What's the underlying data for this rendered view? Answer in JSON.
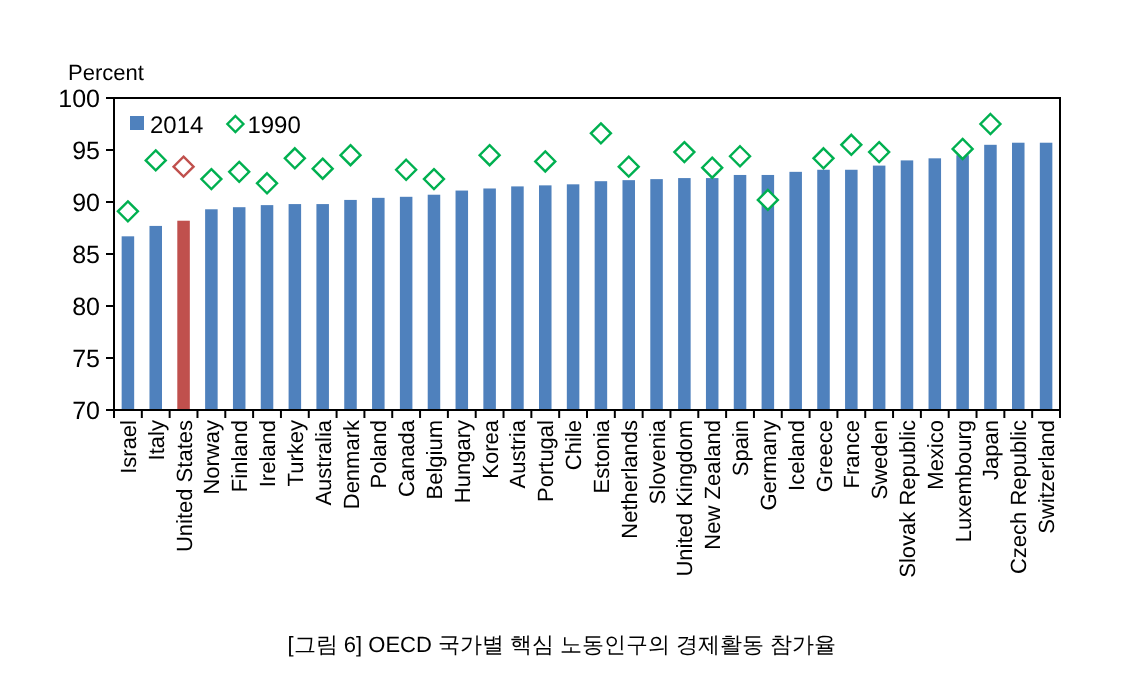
{
  "chart_data": {
    "type": "bar",
    "ylabel": "Percent",
    "categories": [
      "Israel",
      "Italy",
      "United States",
      "Norway",
      "Finland",
      "Ireland",
      "Turkey",
      "Australia",
      "Denmark",
      "Poland",
      "Canada",
      "Belgium",
      "Hungary",
      "Korea",
      "Austria",
      "Portugal",
      "Chile",
      "Estonia",
      "Netherlands",
      "Slovenia",
      "United Kingdom",
      "New Zealand",
      "Spain",
      "Germany",
      "Iceland",
      "Greece",
      "France",
      "Sweden",
      "Slovak Republic",
      "Mexico",
      "Luxembourg",
      "Japan",
      "Czech Republic",
      "Switzerland"
    ],
    "series": [
      {
        "name": "2014",
        "type": "bar",
        "color": "#4f81bd",
        "colors": [
          "#4f81bd",
          "#4f81bd",
          "#c0504d",
          "#4f81bd",
          "#4f81bd",
          "#4f81bd",
          "#4f81bd",
          "#4f81bd",
          "#4f81bd",
          "#4f81bd",
          "#4f81bd",
          "#4f81bd",
          "#4f81bd",
          "#4f81bd",
          "#4f81bd",
          "#4f81bd",
          "#4f81bd",
          "#4f81bd",
          "#4f81bd",
          "#4f81bd",
          "#4f81bd",
          "#4f81bd",
          "#4f81bd",
          "#4f81bd",
          "#4f81bd",
          "#4f81bd",
          "#4f81bd",
          "#4f81bd",
          "#4f81bd",
          "#4f81bd",
          "#4f81bd",
          "#4f81bd",
          "#4f81bd",
          "#4f81bd"
        ],
        "values": [
          86.7,
          87.7,
          88.2,
          89.3,
          89.5,
          89.7,
          89.8,
          89.8,
          90.2,
          90.4,
          90.5,
          90.7,
          91.1,
          91.3,
          91.5,
          91.6,
          91.7,
          92.0,
          92.1,
          92.2,
          92.3,
          92.3,
          92.6,
          92.6,
          92.9,
          93.1,
          93.1,
          93.5,
          94.0,
          94.2,
          94.5,
          95.5,
          95.7,
          95.7
        ]
      },
      {
        "name": "1990",
        "type": "scatter",
        "marker": "diamond",
        "color": "#00b050",
        "colors": [
          "#00b050",
          "#00b050",
          "#c0504d",
          "#00b050",
          "#00b050",
          "#00b050",
          "#00b050",
          "#00b050",
          "#00b050",
          null,
          "#00b050",
          "#00b050",
          null,
          "#00b050",
          null,
          "#00b050",
          null,
          "#00b050",
          "#00b050",
          null,
          "#00b050",
          "#00b050",
          "#00b050",
          "#00b050",
          null,
          "#00b050",
          "#00b050",
          "#00b050",
          null,
          null,
          "#00b050",
          "#00b050",
          null,
          null
        ],
        "values": [
          89.1,
          94.0,
          93.4,
          92.2,
          92.9,
          91.8,
          94.2,
          93.2,
          94.5,
          null,
          93.1,
          92.2,
          null,
          94.5,
          null,
          93.9,
          null,
          96.6,
          93.4,
          null,
          94.8,
          93.3,
          94.4,
          90.2,
          null,
          94.2,
          95.5,
          94.8,
          null,
          null,
          95.1,
          97.5,
          null,
          null
        ]
      }
    ],
    "ylim": [
      70,
      100
    ],
    "yticks": [
      70,
      75,
      80,
      85,
      90,
      95,
      100
    ],
    "legend": "top left",
    "grid": false,
    "annotations": [
      "[그림 6] OECD 국가별 핵심 노동인구의 경제활동 참가율"
    ]
  }
}
